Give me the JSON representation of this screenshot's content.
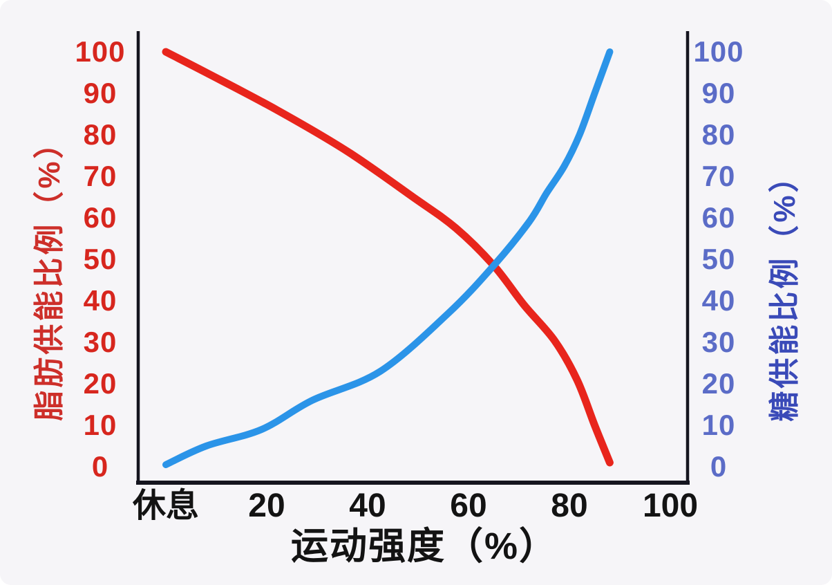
{
  "chart_data": {
    "type": "line",
    "title": "",
    "xlabel": "运动强度（%）",
    "x_ticks": [
      "休息",
      "20",
      "40",
      "60",
      "80",
      "100"
    ],
    "x_tick_values": [
      0,
      20,
      40,
      60,
      80,
      100
    ],
    "x_range": [
      0,
      100
    ],
    "grid": false,
    "legend": false,
    "y_left": {
      "label": "脂肪供能比例（%）",
      "ticks": [
        100,
        90,
        80,
        70,
        60,
        50,
        40,
        30,
        20,
        10,
        0
      ],
      "range": [
        0,
        100
      ],
      "tick_color": "#d7261e",
      "label_color": "#cd2f2a"
    },
    "y_right": {
      "label": "糖供能比例（%）",
      "ticks": [
        100,
        90,
        80,
        70,
        60,
        50,
        40,
        30,
        20,
        10,
        0
      ],
      "range": [
        0,
        100
      ],
      "tick_color": "#5b6cc7",
      "label_color": "#3a4ab8"
    },
    "series": [
      {
        "name": "脂肪供能比例",
        "axis": "left",
        "color": "#e8251c",
        "points": [
          [
            0,
            100
          ],
          [
            8,
            95
          ],
          [
            22,
            86
          ],
          [
            36,
            76
          ],
          [
            49,
            65
          ],
          [
            57.5,
            57.5
          ],
          [
            65,
            48.5
          ],
          [
            71,
            39
          ],
          [
            77,
            30.5
          ],
          [
            81.5,
            21
          ],
          [
            85,
            10
          ],
          [
            88,
            1
          ]
        ]
      },
      {
        "name": "糖供能比例",
        "axis": "right",
        "color": "#2b94e8",
        "points": [
          [
            0,
            0.5
          ],
          [
            8,
            5
          ],
          [
            19,
            9
          ],
          [
            29,
            16
          ],
          [
            42.5,
            23
          ],
          [
            56,
            37
          ],
          [
            65,
            48.5
          ],
          [
            72,
            59
          ],
          [
            75.5,
            66
          ],
          [
            79,
            72.5
          ],
          [
            82,
            80
          ],
          [
            85,
            90
          ],
          [
            88,
            100
          ]
        ]
      }
    ],
    "crossing_point": {
      "intensity": 65,
      "value": 48.5
    },
    "style": {
      "axis_color": "#15151f",
      "background": "#f6f5f8"
    }
  }
}
